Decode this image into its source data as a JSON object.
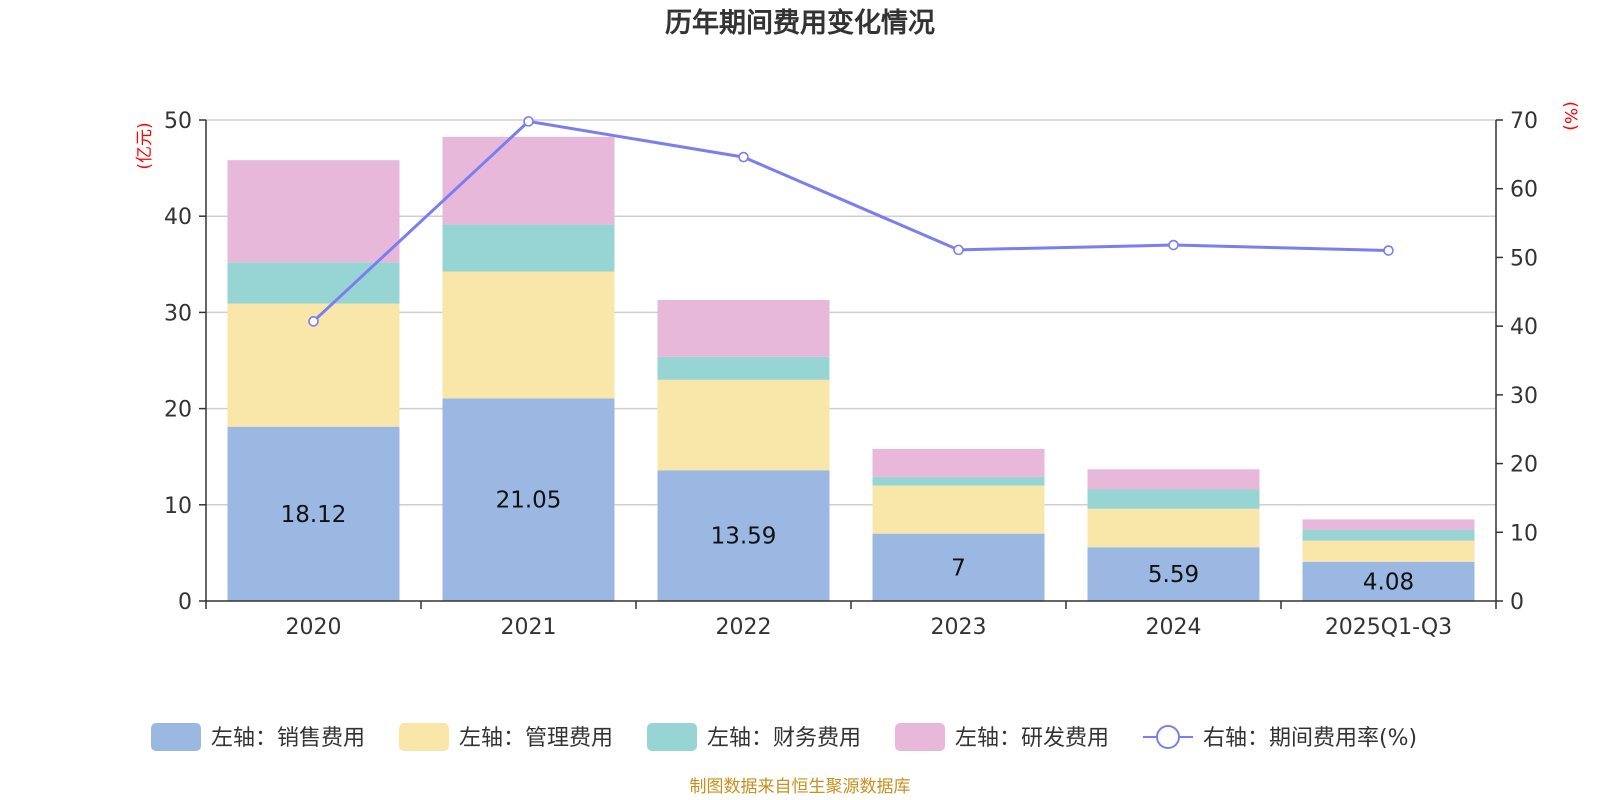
{
  "chart_data": {
    "type": "bar",
    "stacked": true,
    "title": "历年期间费用变化情况",
    "categories": [
      "2020",
      "2021",
      "2022",
      "2023",
      "2024",
      "2025Q1-Q3"
    ],
    "left_axis": {
      "unit": "(亿元)",
      "ylim": [
        0,
        50
      ],
      "ticks": [
        "0",
        "10",
        "20",
        "30",
        "40",
        "50"
      ]
    },
    "right_axis": {
      "unit": "(%)",
      "ylim": [
        0,
        70
      ],
      "ticks": [
        "0",
        "10",
        "20",
        "30",
        "40",
        "50",
        "60",
        "70"
      ]
    },
    "series": [
      {
        "name": "左轴：销售费用",
        "axis": "left",
        "color": "#9bb8e2",
        "values": [
          18.12,
          21.05,
          13.59,
          7,
          5.59,
          4.08
        ],
        "labels": [
          "18.12",
          "21.05",
          "13.59",
          "7",
          "5.59",
          "4.08"
        ]
      },
      {
        "name": "左轴：管理费用",
        "axis": "left",
        "color": "#f8e7a9",
        "values": [
          12.8,
          13.2,
          9.4,
          5.0,
          4.0,
          2.2
        ]
      },
      {
        "name": "左轴：财务费用",
        "axis": "left",
        "color": "#97d5d5",
        "values": [
          4.3,
          4.9,
          2.4,
          0.9,
          2.0,
          1.1
        ]
      },
      {
        "name": "左轴：研发费用",
        "axis": "left",
        "color": "#e7b8da",
        "values": [
          10.6,
          9.1,
          5.9,
          2.9,
          2.1,
          1.1
        ]
      }
    ],
    "line_series": {
      "name": "右轴：期间费用率(%)",
      "axis": "right",
      "color": "#7b7ef0",
      "values": [
        40.7,
        69.8,
        64.6,
        51.1,
        51.8,
        51.0
      ]
    },
    "legend_position": "bottom",
    "grid": true
  },
  "source": "制图数据来自恒生聚源数据库"
}
